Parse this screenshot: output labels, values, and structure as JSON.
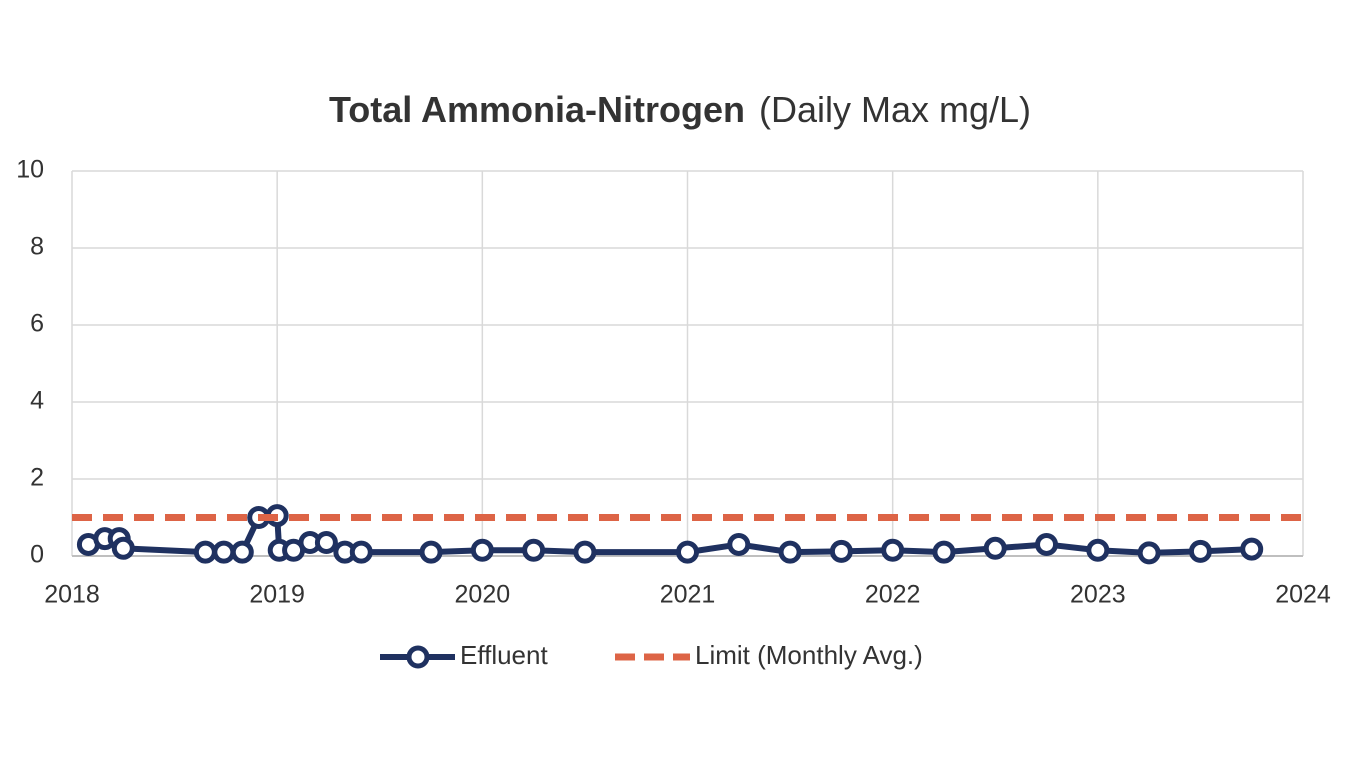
{
  "chart_data": {
    "type": "line",
    "title": "Total Ammonia-Nitrogen",
    "subtitle": "(Daily Max mg/L)",
    "xlim": [
      2018,
      2024
    ],
    "xticks": [
      2018,
      2019,
      2020,
      2021,
      2022,
      2023,
      2024
    ],
    "ylim": [
      0,
      10
    ],
    "yticks": [
      0,
      2,
      4,
      6,
      8,
      10
    ],
    "grid": true,
    "legend": "bottom",
    "series": [
      {
        "name": "Effluent",
        "color": "#1f3160",
        "style": "solid",
        "markers": true,
        "x": [
          2018.08,
          2018.16,
          2018.23,
          2018.25,
          2018.65,
          2018.74,
          2018.83,
          2018.91,
          2019.0,
          2019.01,
          2019.08,
          2019.16,
          2019.24,
          2019.33,
          2019.41,
          2019.75,
          2020.0,
          2020.25,
          2020.5,
          2021.0,
          2021.25,
          2021.5,
          2021.75,
          2022.0,
          2022.25,
          2022.5,
          2022.75,
          2023.0,
          2023.25,
          2023.5,
          2023.75
        ],
        "values": [
          0.3,
          0.45,
          0.45,
          0.2,
          0.1,
          0.1,
          0.1,
          1.0,
          1.05,
          0.15,
          0.15,
          0.35,
          0.35,
          0.1,
          0.1,
          0.1,
          0.15,
          0.15,
          0.1,
          0.1,
          0.3,
          0.1,
          0.12,
          0.15,
          0.1,
          0.2,
          0.3,
          0.15,
          0.08,
          0.12,
          0.18
        ]
      },
      {
        "name": "Limit (Monthly Avg.)",
        "color": "#dd6446",
        "style": "dashed",
        "markers": false,
        "x": [
          2018,
          2024
        ],
        "values": [
          1,
          1
        ]
      }
    ]
  }
}
